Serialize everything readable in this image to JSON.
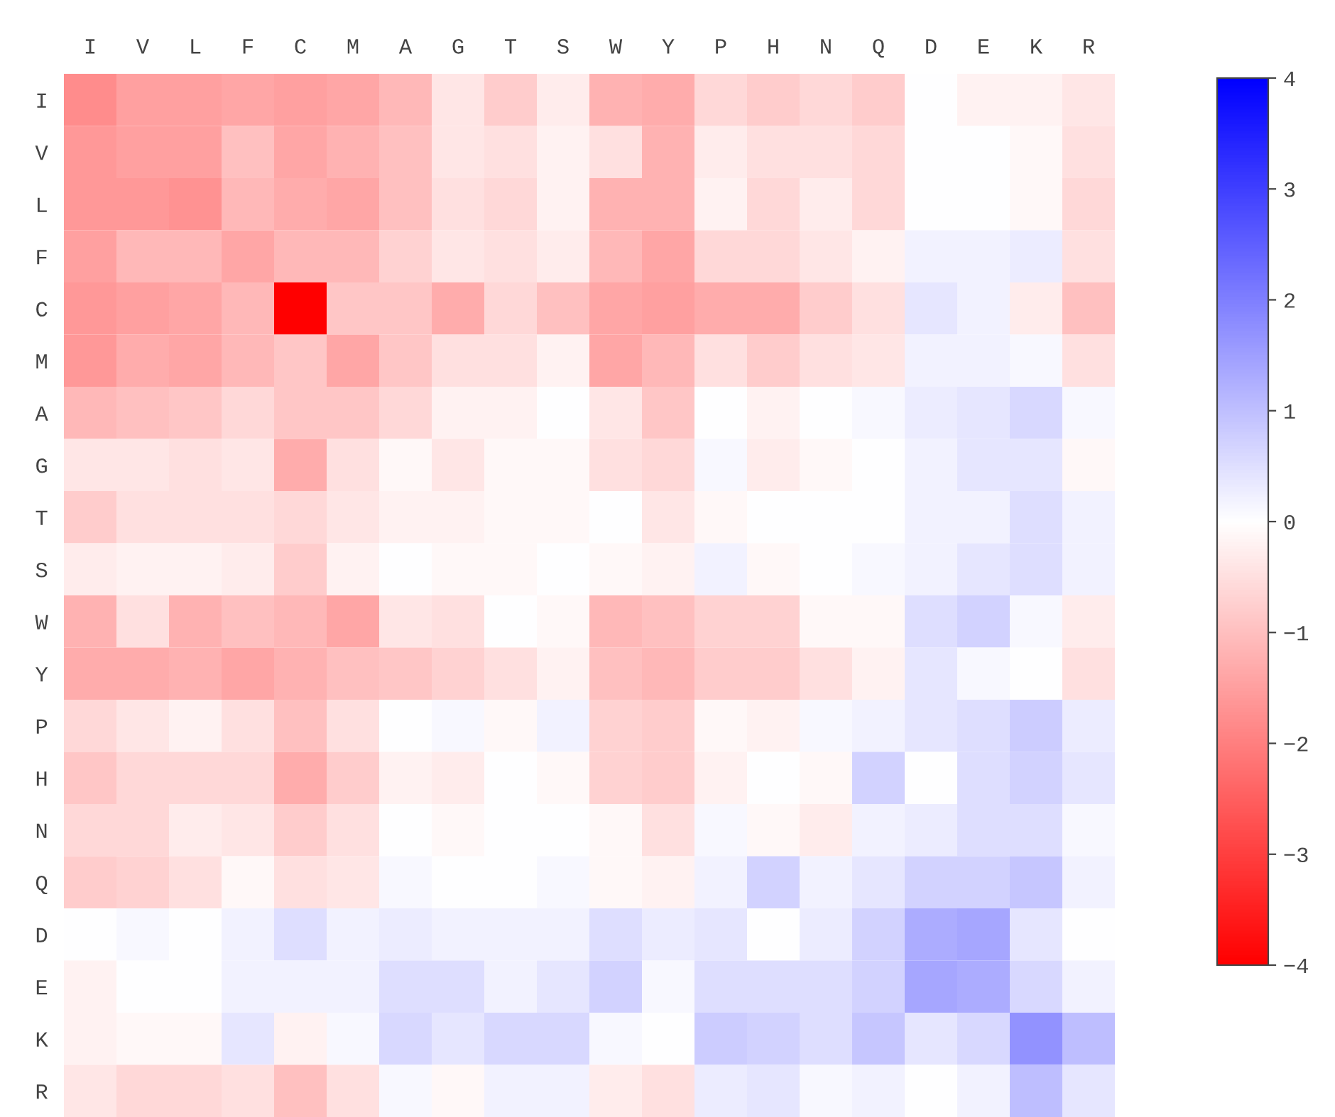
{
  "chart_data": {
    "type": "heatmap",
    "categories": [
      "I",
      "V",
      "L",
      "F",
      "C",
      "M",
      "A",
      "G",
      "T",
      "S",
      "W",
      "Y",
      "P",
      "H",
      "N",
      "Q",
      "D",
      "E",
      "K",
      "R"
    ],
    "y_categories": [
      "I",
      "V",
      "L",
      "F",
      "C",
      "M",
      "A",
      "G",
      "T",
      "S",
      "W",
      "Y",
      "P",
      "H",
      "N",
      "Q",
      "D",
      "E",
      "K",
      "R"
    ],
    "cells": [
      [
        -1.8,
        -1.5,
        -1.5,
        -1.4,
        -1.5,
        -1.4,
        -1.1,
        -0.4,
        -0.8,
        -0.3,
        -1.2,
        -1.3,
        -0.6,
        -0.8,
        -0.6,
        -0.8,
        0.0,
        -0.2,
        -0.2,
        -0.4
      ],
      [
        -1.6,
        -1.5,
        -1.5,
        -1.0,
        -1.4,
        -1.2,
        -1.0,
        -0.4,
        -0.5,
        -0.2,
        -0.5,
        -1.2,
        -0.3,
        -0.5,
        -0.5,
        -0.6,
        0.0,
        0.0,
        -0.1,
        -0.5
      ],
      [
        -1.6,
        -1.6,
        -1.7,
        -1.1,
        -1.3,
        -1.4,
        -1.0,
        -0.5,
        -0.6,
        -0.2,
        -1.2,
        -1.2,
        -0.2,
        -0.6,
        -0.3,
        -0.6,
        0.0,
        0.0,
        -0.1,
        -0.6
      ],
      [
        -1.5,
        -1.1,
        -1.1,
        -1.4,
        -1.1,
        -1.1,
        -0.7,
        -0.4,
        -0.5,
        -0.3,
        -1.1,
        -1.4,
        -0.6,
        -0.6,
        -0.4,
        -0.2,
        0.2,
        0.2,
        0.3,
        -0.5
      ],
      [
        -1.6,
        -1.5,
        -1.4,
        -1.1,
        -4.0,
        -0.9,
        -0.9,
        -1.3,
        -0.6,
        -1.0,
        -1.4,
        -1.5,
        -1.3,
        -1.3,
        -0.8,
        -0.5,
        0.4,
        0.2,
        -0.3,
        -1.0
      ],
      [
        -1.6,
        -1.3,
        -1.4,
        -1.1,
        -0.9,
        -1.4,
        -0.9,
        -0.5,
        -0.5,
        -0.2,
        -1.4,
        -1.1,
        -0.5,
        -0.8,
        -0.5,
        -0.4,
        0.2,
        0.2,
        0.1,
        -0.5
      ],
      [
        -1.1,
        -1.0,
        -0.9,
        -0.6,
        -0.9,
        -0.9,
        -0.6,
        -0.2,
        -0.2,
        0.0,
        -0.4,
        -0.9,
        0.0,
        -0.2,
        0.0,
        0.1,
        0.3,
        0.4,
        0.6,
        0.1
      ],
      [
        -0.4,
        -0.4,
        -0.5,
        -0.4,
        -1.3,
        -0.5,
        -0.1,
        -0.4,
        -0.1,
        -0.1,
        -0.5,
        -0.6,
        0.1,
        -0.3,
        -0.1,
        0.0,
        0.2,
        0.4,
        0.4,
        -0.1
      ],
      [
        -0.8,
        -0.5,
        -0.5,
        -0.5,
        -0.6,
        -0.4,
        -0.2,
        -0.2,
        -0.1,
        -0.1,
        0.0,
        -0.4,
        -0.1,
        0.0,
        0.0,
        0.0,
        0.2,
        0.2,
        0.5,
        0.2
      ],
      [
        -0.3,
        -0.2,
        -0.2,
        -0.3,
        -0.8,
        -0.2,
        0.0,
        -0.1,
        -0.1,
        0.0,
        -0.1,
        -0.2,
        0.2,
        -0.1,
        0.0,
        0.1,
        0.2,
        0.4,
        0.5,
        0.2
      ],
      [
        -1.2,
        -0.5,
        -1.2,
        -1.0,
        -1.1,
        -1.4,
        -0.4,
        -0.5,
        0.0,
        -0.1,
        -1.1,
        -1.0,
        -0.7,
        -0.7,
        -0.1,
        -0.1,
        0.5,
        0.7,
        0.1,
        -0.3
      ],
      [
        -1.3,
        -1.3,
        -1.2,
        -1.4,
        -1.2,
        -1.0,
        -0.9,
        -0.7,
        -0.5,
        -0.2,
        -1.0,
        -1.1,
        -0.8,
        -0.8,
        -0.5,
        -0.2,
        0.4,
        0.1,
        0.0,
        -0.5
      ],
      [
        -0.6,
        -0.4,
        -0.2,
        -0.5,
        -1.0,
        -0.5,
        0.0,
        0.1,
        -0.1,
        0.2,
        -0.7,
        -0.8,
        -0.1,
        -0.2,
        0.1,
        0.2,
        0.4,
        0.5,
        0.8,
        0.3
      ],
      [
        -0.9,
        -0.6,
        -0.6,
        -0.6,
        -1.3,
        -0.8,
        -0.2,
        -0.3,
        0.0,
        -0.1,
        -0.7,
        -0.8,
        -0.2,
        0.0,
        -0.1,
        0.7,
        0.0,
        0.5,
        0.7,
        0.4
      ],
      [
        -0.6,
        -0.6,
        -0.3,
        -0.4,
        -0.8,
        -0.5,
        0.0,
        -0.1,
        0.0,
        0.0,
        -0.1,
        -0.5,
        0.1,
        -0.1,
        -0.3,
        0.2,
        0.3,
        0.5,
        0.5,
        0.1
      ],
      [
        -0.8,
        -0.7,
        -0.5,
        -0.1,
        -0.5,
        -0.4,
        0.1,
        0.0,
        0.0,
        0.1,
        -0.1,
        -0.2,
        0.2,
        0.7,
        0.2,
        0.4,
        0.7,
        0.7,
        0.9,
        0.2
      ],
      [
        0.0,
        0.1,
        0.0,
        0.2,
        0.5,
        0.2,
        0.3,
        0.2,
        0.2,
        0.2,
        0.5,
        0.3,
        0.4,
        0.0,
        0.3,
        0.7,
        1.3,
        1.4,
        0.4,
        0.0
      ],
      [
        -0.2,
        0.0,
        0.0,
        0.2,
        0.2,
        0.2,
        0.5,
        0.5,
        0.2,
        0.4,
        0.7,
        0.1,
        0.5,
        0.5,
        0.5,
        0.7,
        1.4,
        1.3,
        0.6,
        0.2
      ],
      [
        -0.2,
        -0.1,
        -0.1,
        0.4,
        -0.2,
        0.1,
        0.6,
        0.4,
        0.6,
        0.6,
        0.1,
        0.0,
        0.8,
        0.7,
        0.5,
        0.9,
        0.4,
        0.6,
        1.7,
        1.0
      ],
      [
        -0.4,
        -0.6,
        -0.6,
        -0.5,
        -1.0,
        -0.5,
        0.1,
        -0.1,
        0.2,
        0.2,
        -0.3,
        -0.5,
        0.3,
        0.4,
        0.1,
        0.2,
        0.0,
        0.2,
        1.0,
        0.4
      ]
    ],
    "clim": [
      -4,
      4
    ],
    "cticks": [
      4,
      3,
      2,
      1,
      0,
      {
        "value": -1,
        "label": "−1"
      },
      {
        "value": -2,
        "label": "−2"
      },
      {
        "value": -3,
        "label": "−3"
      },
      {
        "value": -4,
        "label": "−4"
      }
    ],
    "grid": false
  }
}
